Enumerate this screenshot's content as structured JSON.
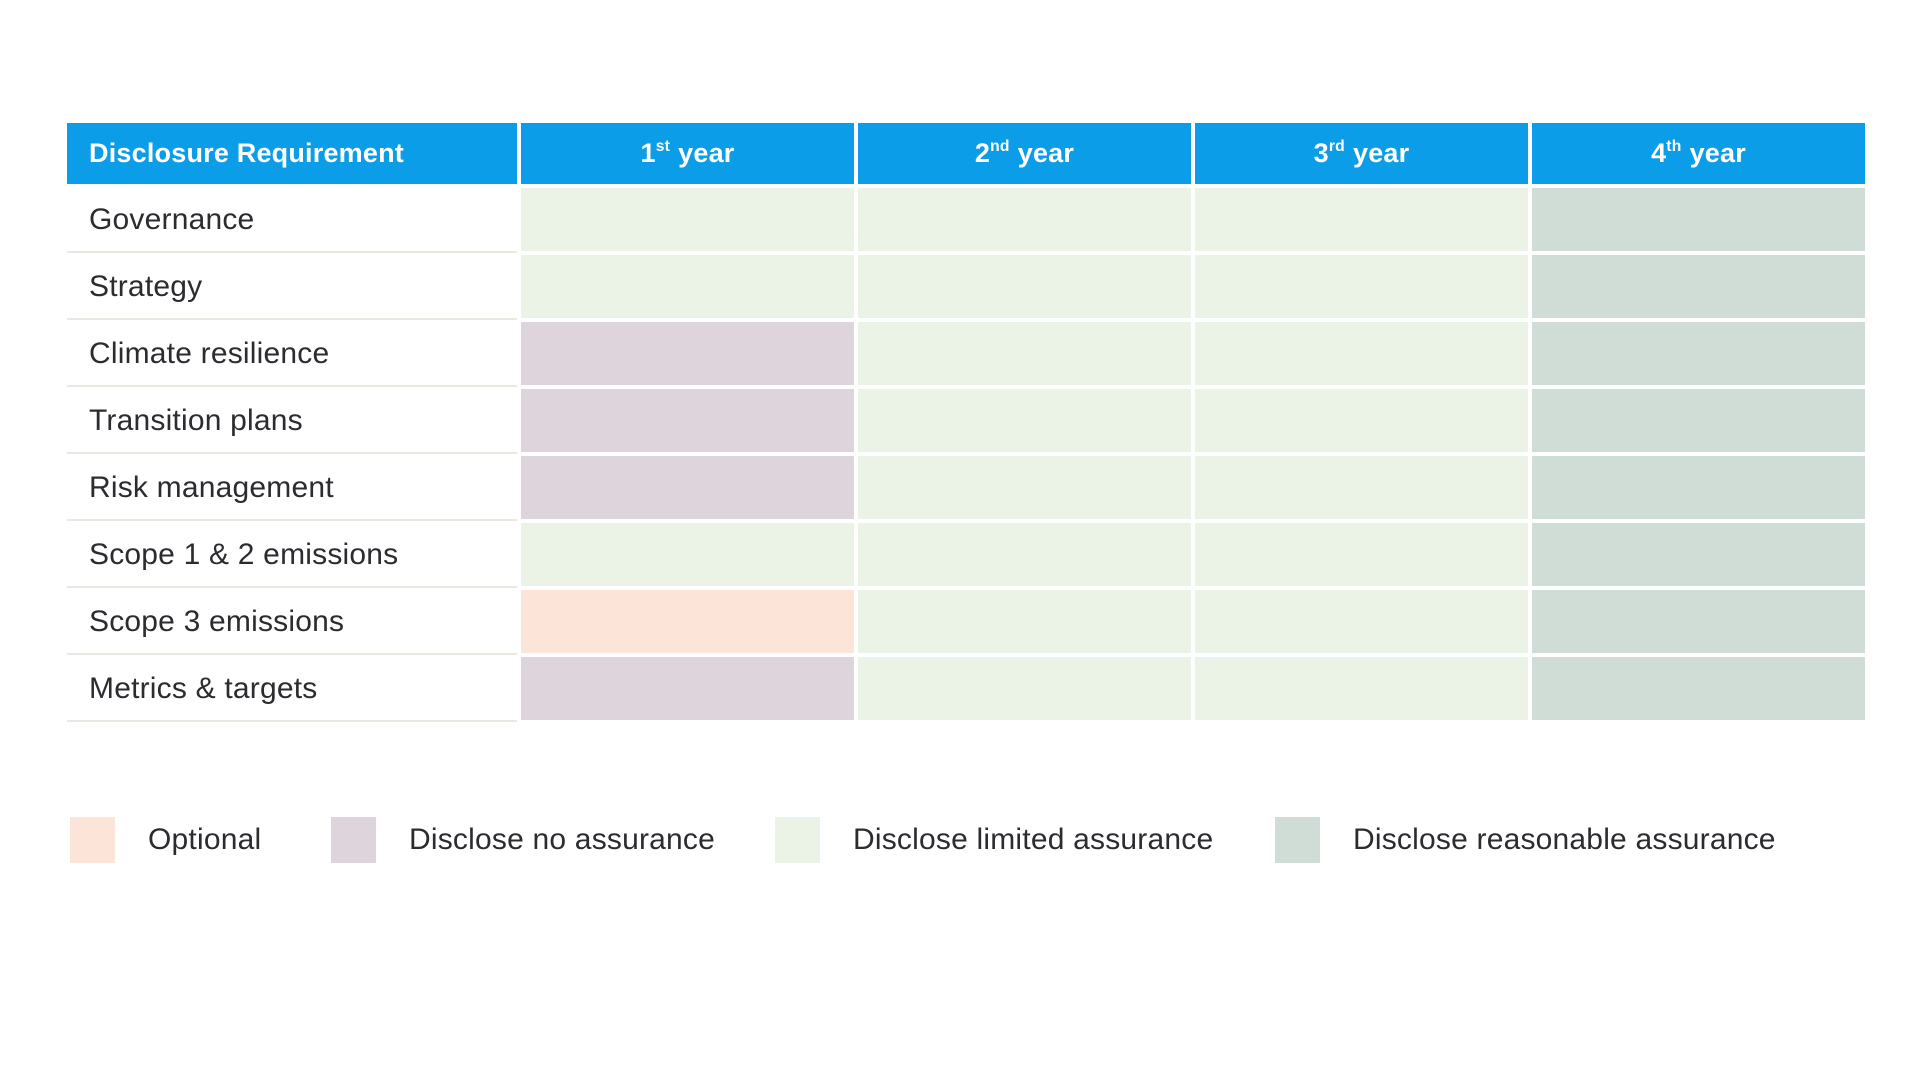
{
  "chart_data": {
    "type": "table",
    "title": "",
    "columns": [
      "Disclosure Requirement",
      "1st year",
      "2nd year",
      "3rd year",
      "4th year"
    ],
    "rows": [
      "Governance",
      "Strategy",
      "Climate resilience",
      "Transition plans",
      "Risk management",
      "Scope 1 & 2 emissions",
      "Scope 3 emissions",
      "Metrics & targets"
    ],
    "values": [
      [
        "limited",
        "limited",
        "limited",
        "reasonable"
      ],
      [
        "limited",
        "limited",
        "limited",
        "reasonable"
      ],
      [
        "none",
        "limited",
        "limited",
        "reasonable"
      ],
      [
        "none",
        "limited",
        "limited",
        "reasonable"
      ],
      [
        "none",
        "limited",
        "limited",
        "reasonable"
      ],
      [
        "limited",
        "limited",
        "limited",
        "reasonable"
      ],
      [
        "optional",
        "limited",
        "limited",
        "reasonable"
      ],
      [
        "none",
        "limited",
        "limited",
        "reasonable"
      ]
    ],
    "legend_position": "bottom"
  },
  "table": {
    "header": {
      "label": "Disclosure Requirement",
      "years": [
        {
          "num": "1",
          "suffix": "st",
          "word": "year"
        },
        {
          "num": "2",
          "suffix": "nd",
          "word": "year"
        },
        {
          "num": "3",
          "suffix": "rd",
          "word": "year"
        },
        {
          "num": "4",
          "suffix": "th",
          "word": "year"
        }
      ]
    }
  },
  "legend": [
    {
      "key": "optional",
      "label": "Optional"
    },
    {
      "key": "none",
      "label": "Disclose no assurance"
    },
    {
      "key": "limited",
      "label": "Disclose limited assurance"
    },
    {
      "key": "reasonable",
      "label": "Disclose reasonable assurance"
    }
  ],
  "colors": {
    "header_bg": "#0c9de8",
    "optional": "#fce4d9",
    "none": "#ded4dc",
    "limited": "#eaf3e5",
    "reasonable": "#d0dcd6"
  }
}
